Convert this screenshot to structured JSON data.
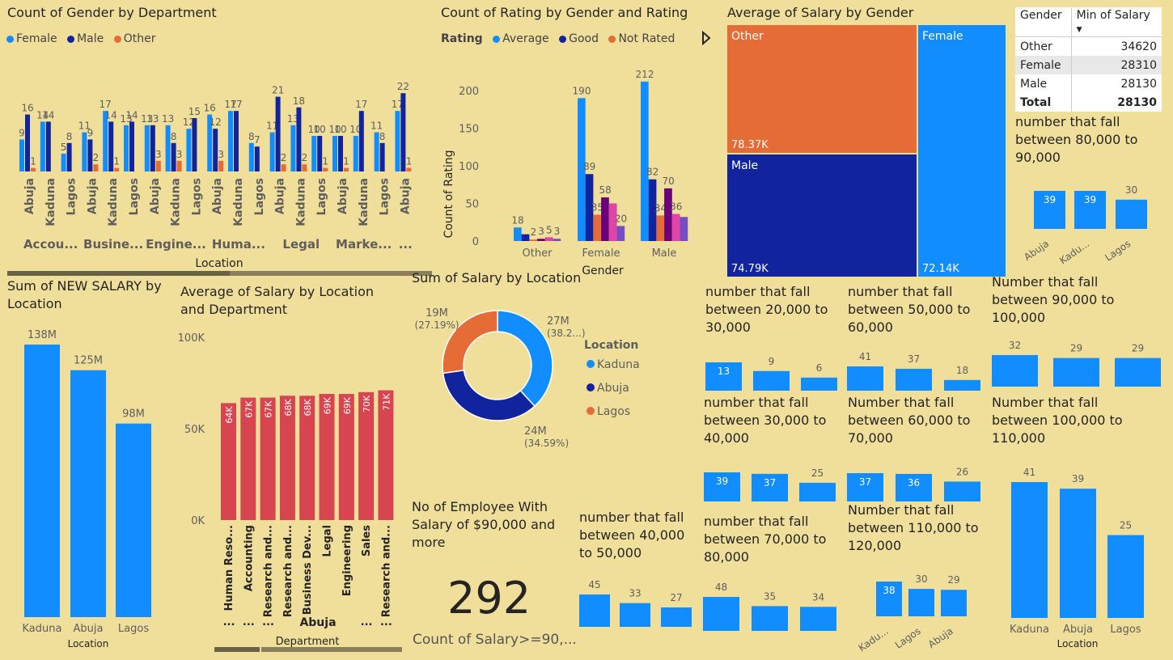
{
  "colors": {
    "blue": "#118dff",
    "navy": "#12239e",
    "orange": "#e66c37",
    "purple": "#6b007b",
    "pink": "#e044a7",
    "violet": "#744ec2",
    "red": "#d64550",
    "bg": "#efdf9b",
    "axis": "#605e5c"
  },
  "gender_dept": {
    "title": "Count of Gender by Department",
    "legend": [
      "Female",
      "Male",
      "Other"
    ],
    "xlabel": "Location",
    "departments": [
      "Accou...",
      "Busine...",
      "Engine...",
      "Huma...",
      "Legal",
      "Marke...",
      "..."
    ],
    "locations": [
      "Abuja",
      "Kaduna",
      "Lagos",
      "Abuja",
      "Kaduna",
      "Lagos",
      "Abuja",
      "Kaduna",
      "Lagos",
      "Abuja",
      "Kaduna",
      "Lagos",
      "Abuja",
      "Kaduna",
      "Lagos",
      "Abuja",
      "Kaduna",
      "Lagos",
      "Abuja"
    ],
    "female": [
      9,
      14,
      5,
      11,
      17,
      13,
      13,
      13,
      12,
      16,
      17,
      8,
      11,
      13,
      10,
      10,
      10,
      11,
      17
    ],
    "male": [
      16,
      14,
      8,
      9,
      14,
      14,
      13,
      8,
      15,
      12,
      17,
      7,
      21,
      18,
      10,
      10,
      17,
      8,
      22
    ],
    "other": [
      1,
      null,
      null,
      2,
      1,
      null,
      3,
      3,
      null,
      3,
      null,
      null,
      2,
      2,
      1,
      1,
      null,
      null,
      1
    ]
  },
  "rating": {
    "title": "Count of Rating by Gender and Rating",
    "legend_title": "Rating",
    "legend": [
      "Average",
      "Good",
      "Not Rated"
    ],
    "ylabel": "Count of Rating",
    "xlabel": "Gender",
    "yticks": [
      "0",
      "50",
      "100",
      "150",
      "200"
    ],
    "groups": [
      {
        "name": "Other",
        "values": [
          18,
          9,
          2,
          3,
          5,
          3
        ],
        "labels": [
          "18",
          "",
          "2",
          "3",
          "5",
          "3"
        ]
      },
      {
        "name": "Female",
        "values": [
          190,
          89,
          35,
          58,
          50,
          20
        ],
        "labels": [
          "190",
          "89",
          "35",
          "58",
          "",
          "20"
        ]
      },
      {
        "name": "Male",
        "values": [
          212,
          82,
          34,
          70,
          36,
          32
        ],
        "labels": [
          "212",
          "82",
          "34",
          "70",
          "36",
          ""
        ]
      }
    ]
  },
  "treemap": {
    "title": "Average of Salary by Gender",
    "tiles": [
      {
        "name": "Other",
        "value": "78.37K"
      },
      {
        "name": "Male",
        "value": "74.79K"
      },
      {
        "name": "Female",
        "value": "72.14K"
      }
    ]
  },
  "min_table": {
    "headers": [
      "Gender",
      "Min of Salary"
    ],
    "rows": [
      {
        "g": "Other",
        "v": "34620"
      },
      {
        "g": "Female",
        "v": "28310"
      },
      {
        "g": "Male",
        "v": "28130"
      }
    ],
    "total": {
      "g": "Total",
      "v": "28130"
    }
  },
  "new_salary": {
    "title": "Sum of NEW SALARY by Location",
    "xlabel": "Location",
    "categories": [
      "Kaduna",
      "Abuja",
      "Lagos"
    ],
    "values": [
      138,
      125,
      98
    ],
    "labels": [
      "138M",
      "125M",
      "98M"
    ]
  },
  "avg_loc_dept": {
    "title": "Average of Salary by Location and Department",
    "yticks": [
      "0K",
      "50K",
      "100K"
    ],
    "categories": [
      "Human Reso...",
      "Accounting",
      "Research and...",
      "Research and...",
      "Business Dev...",
      "Legal",
      "Engineering",
      "Sales",
      "Research and..."
    ],
    "values": [
      64,
      67,
      67,
      68,
      68,
      69,
      69,
      70,
      71
    ],
    "labels": [
      "64K",
      "67K",
      "67K",
      "68K",
      "68K",
      "69K",
      "69K",
      "70K",
      "71K"
    ],
    "ellipses": [
      "...",
      "...",
      "...",
      "...",
      "..."
    ],
    "group": "Abuja",
    "xlabel": "Department"
  },
  "donut": {
    "title": "Sum of Salary by Location",
    "legend_title": "Location",
    "legend": [
      "Kaduna",
      "Abuja",
      "Lagos"
    ],
    "values": [
      38.2,
      34.59,
      27.19
    ],
    "labels": [
      {
        "v": "27M",
        "p": "(38.2...)"
      },
      {
        "v": "24M",
        "p": "(34.59%)"
      },
      {
        "v": "19M",
        "p": "(27.19%)"
      }
    ]
  },
  "kpi": {
    "title": "No of Employee With Salary of $90,000 and more",
    "value": "292",
    "caption": "Count of Salary>=90,..."
  },
  "mini": [
    {
      "title": "number that fall between 80,000 to 90,000",
      "values": [
        39,
        39,
        30
      ],
      "inside": [
        true,
        true,
        false
      ],
      "cats": [
        "Abuja",
        "Kadu...",
        "Lagos"
      ]
    },
    {
      "title": "number that fall between 20,000 to 30,000",
      "values": [
        13,
        9,
        6
      ],
      "inside": [
        true,
        false,
        false
      ]
    },
    {
      "title": "number that fall between 50,000 to 60,000",
      "values": [
        41,
        37,
        18
      ],
      "inside": [
        false,
        false,
        false
      ]
    },
    {
      "title": "Number that fall between 90,000 to 100,000",
      "values": [
        32,
        29,
        29
      ],
      "inside": [
        false,
        false,
        false
      ]
    },
    {
      "title": "number that fall between 30,000 to 40,000",
      "values": [
        39,
        37,
        25
      ],
      "inside": [
        true,
        true,
        false
      ]
    },
    {
      "title": "Number that fall between 60,000 to 70,000",
      "values": [
        37,
        36,
        26
      ],
      "inside": [
        true,
        true,
        false
      ]
    },
    {
      "title": "Number that fall between 100,000 to 110,000",
      "values": [
        41,
        39,
        25
      ],
      "cats": [
        "Kaduna",
        "Abuja",
        "Lagos"
      ],
      "xlabel": "Location",
      "inside": [
        false,
        false,
        false
      ]
    },
    {
      "title": "number that fall between 40,000 to 50,000",
      "values": [
        45,
        33,
        27
      ],
      "inside": [
        false,
        false,
        false
      ]
    },
    {
      "title": "number that fall between 70,000 to 80,000",
      "values": [
        48,
        35,
        34
      ],
      "inside": [
        false,
        false,
        false
      ]
    },
    {
      "title": "Number that fall between 110,000 to 120,000",
      "values": [
        38,
        30,
        29
      ],
      "inside": [
        true,
        false,
        false
      ],
      "cats": [
        "Kadu...",
        "Lagos",
        "Abuja"
      ]
    }
  ]
}
